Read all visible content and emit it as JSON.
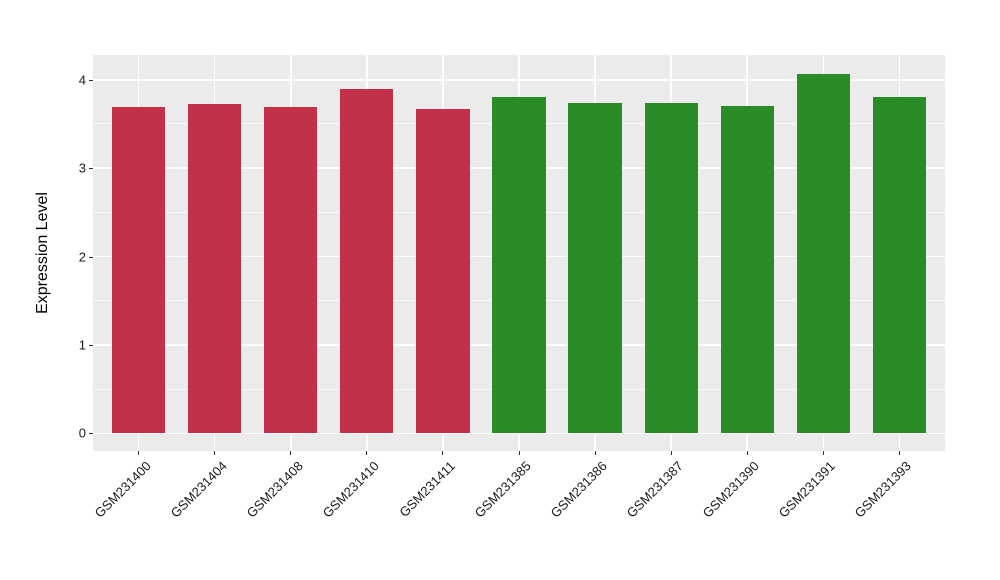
{
  "chart_data": {
    "type": "bar",
    "title": "",
    "xlabel": "",
    "ylabel": "Expression Level",
    "categories": [
      "GSM231400",
      "GSM231404",
      "GSM231408",
      "GSM231410",
      "GSM231411",
      "GSM231385",
      "GSM231386",
      "GSM231387",
      "GSM231390",
      "GSM231391",
      "GSM231393"
    ],
    "values": [
      3.69,
      3.73,
      3.69,
      3.89,
      3.67,
      3.81,
      3.74,
      3.74,
      3.7,
      4.06,
      3.8
    ],
    "groups": [
      "red",
      "red",
      "red",
      "red",
      "red",
      "green",
      "green",
      "green",
      "green",
      "green",
      "green"
    ],
    "group_colors": {
      "red": "#C2304A",
      "green": "#2A8C26"
    },
    "y_ticks": [
      0,
      1,
      2,
      3,
      4
    ],
    "minor_gridlines": [
      0.5,
      1.5,
      2.5,
      3.5
    ],
    "ylim": [
      -0.2,
      4.28
    ],
    "grid": "major+minor",
    "legend": "none",
    "panel_bg": "#EBEBEB",
    "grid_color": "#FFFFFF",
    "axis_text_color": "#1A1A1A"
  }
}
